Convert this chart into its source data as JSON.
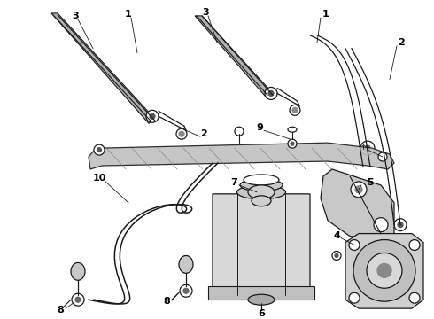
{
  "background_color": "#ffffff",
  "fig_width": 4.9,
  "fig_height": 3.6,
  "dpi": 100,
  "line_color": "#1a1a1a",
  "label_fontsize": 8,
  "label_fontweight": "bold"
}
